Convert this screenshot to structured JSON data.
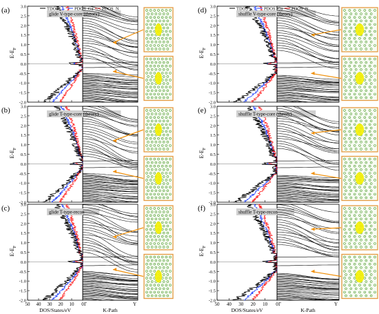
{
  "figure": {
    "panels": [
      {
        "label": "(a)",
        "title": "glide V-type-core (theory)",
        "legend": [
          "TDOS",
          "PDOS_Ga",
          "PDOS_N"
        ],
        "xlabel": "",
        "klabel": ""
      },
      {
        "label": "(b)",
        "title": "glide T-type-core (theory)",
        "legend": [],
        "xlabel": "",
        "klabel": ""
      },
      {
        "label": "(c)",
        "title": "glide T-type-recon",
        "legend": [],
        "xlabel": "DOS/States/eV",
        "klabel": "K-Path"
      },
      {
        "label": "(d)",
        "title": "shuffle V-type-core (theory)",
        "legend": [
          "TDOS",
          "PDOS_Ga",
          "PDOS_N"
        ],
        "xlabel": "",
        "klabel": ""
      },
      {
        "label": "(e)",
        "title": "shuffle T-type-core (theory)",
        "legend": [],
        "xlabel": "",
        "klabel": ""
      },
      {
        "label": "(f)",
        "title": "shuffle T-type-recon",
        "legend": [],
        "xlabel": "DOS/States/eV",
        "klabel": "K-Path"
      }
    ],
    "ylabel": "E-E",
    "ylabel_sub": "F",
    "y_ticks": [
      "3.0",
      "2.5",
      "2.0",
      "1.5",
      "1.0",
      "0.5",
      "0.0",
      "-0.5",
      "-1.0",
      "-1.5",
      "-2.0"
    ],
    "dos_ticks": [
      "50",
      "40",
      "30",
      "20",
      "10",
      "0"
    ],
    "k_ticks": [
      "Γ",
      "Y"
    ],
    "colors": {
      "tdos": "#000000",
      "ga": "#1f3fff",
      "n": "#ff2020",
      "arrow": "#f0900a",
      "atom": "#4a9a2a",
      "charge": "#f4f000",
      "frame": "#e59a40"
    }
  }
}
